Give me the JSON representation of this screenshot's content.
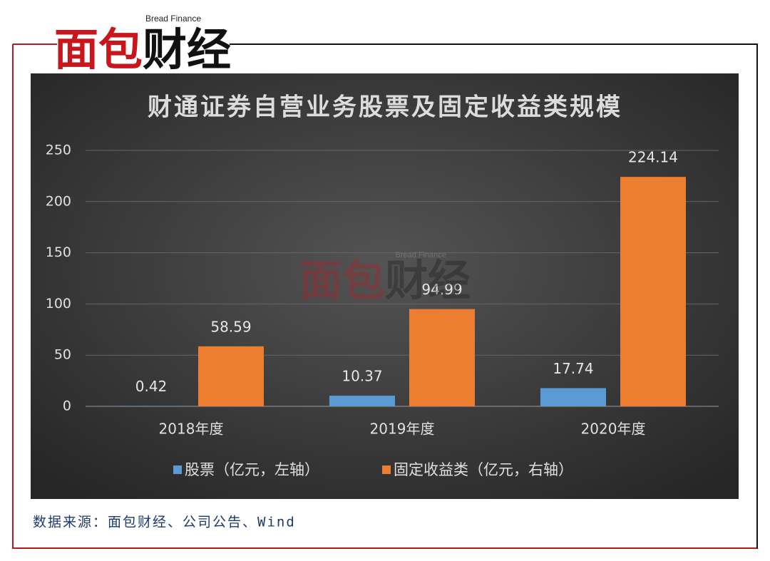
{
  "logo": {
    "title": "面包财经",
    "subtitle": "Bread Finance"
  },
  "chart_data": {
    "type": "bar",
    "title": "财通证券自营业务股票及固定收益类规模",
    "categories": [
      "2018年度",
      "2019年度",
      "2020年度"
    ],
    "series": [
      {
        "name": "股票（亿元，左轴）",
        "color": "#5b9bd5",
        "values": [
          0.42,
          10.37,
          17.74
        ]
      },
      {
        "name": "固定收益类（亿元，右轴）",
        "color": "#ed7d31",
        "values": [
          58.59,
          94.99,
          224.14
        ]
      }
    ],
    "ylim": [
      0,
      250
    ],
    "yticks": [
      0,
      50,
      100,
      150,
      200,
      250
    ],
    "grid": true,
    "legend": "bottom"
  },
  "source": "数据来源：面包财经、公司公告、Wind"
}
